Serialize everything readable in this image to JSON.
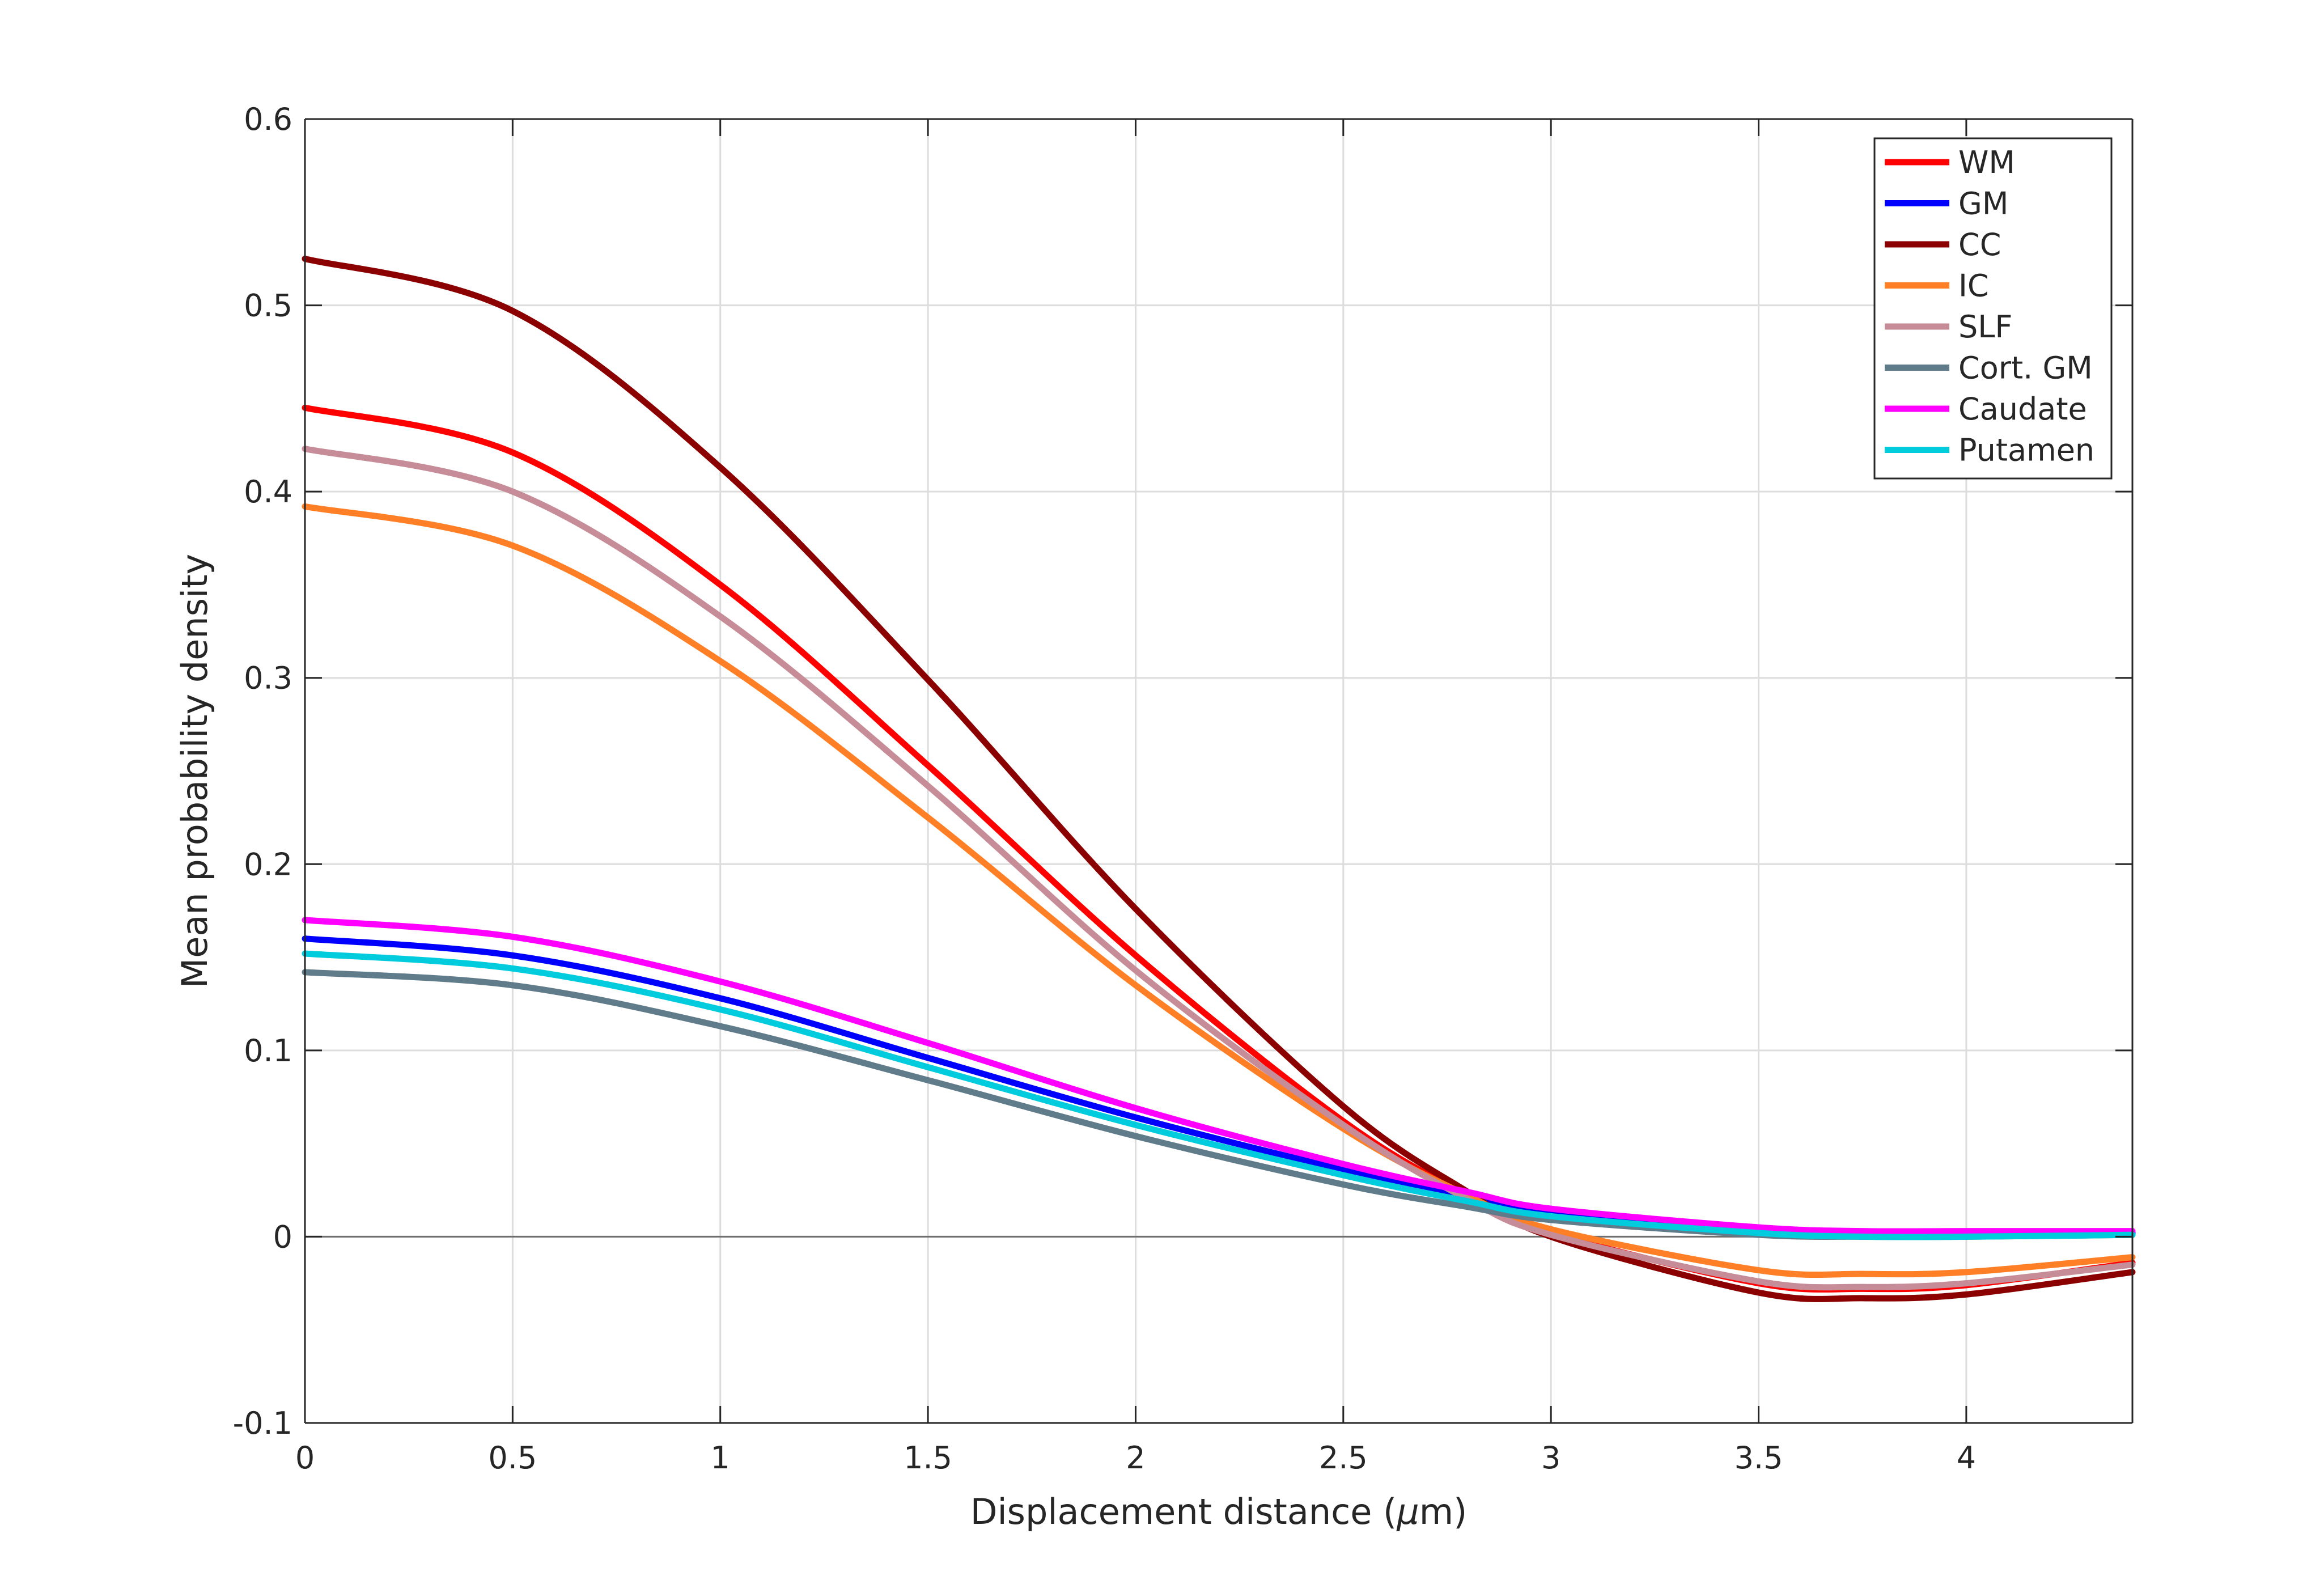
{
  "chart_data": {
    "type": "line",
    "title": "",
    "xlabel": "Displacement distance (",
    "xlabel_symbol": "μ",
    "xlabel_suffix": "m)",
    "ylabel": "Mean probability density",
    "xlim": [
      0,
      4.4
    ],
    "ylim": [
      -0.1,
      0.6
    ],
    "grid": true,
    "legend_position": "top-right",
    "x_ticks": [
      0,
      0.5,
      1,
      1.5,
      2,
      2.5,
      3,
      3.5,
      4
    ],
    "x_tick_labels": [
      "0",
      "0.5",
      "1",
      "1.5",
      "2",
      "2.5",
      "3",
      "3.5",
      "4"
    ],
    "y_ticks": [
      -0.1,
      0,
      0.1,
      0.2,
      0.3,
      0.4,
      0.5,
      0.6
    ],
    "y_tick_labels": [
      "-0.1",
      "0",
      "0.1",
      "0.2",
      "0.3",
      "0.4",
      "0.5",
      "0.6"
    ],
    "x": [
      0,
      0.5,
      1,
      1.5,
      2,
      2.5,
      2.8,
      3,
      3.5,
      3.75,
      4,
      4.4
    ],
    "series": [
      {
        "name": "WM",
        "color": "#ff0000",
        "values": [
          0.445,
          0.421,
          0.35,
          0.253,
          0.151,
          0.062,
          0.022,
          0.002,
          -0.025,
          -0.028,
          -0.026,
          -0.014
        ]
      },
      {
        "name": "GM",
        "color": "#0000ff",
        "values": [
          0.16,
          0.151,
          0.128,
          0.096,
          0.064,
          0.036,
          0.022,
          0.013,
          0.004,
          0.002,
          0.002,
          0.002
        ]
      },
      {
        "name": "CC",
        "color": "#8b0000",
        "values": [
          0.525,
          0.497,
          0.413,
          0.299,
          0.176,
          0.07,
          0.024,
          0.0,
          -0.03,
          -0.033,
          -0.031,
          -0.019
        ]
      },
      {
        "name": "IC",
        "color": "#ff7f27",
        "values": [
          0.392,
          0.371,
          0.309,
          0.225,
          0.135,
          0.058,
          0.022,
          0.004,
          -0.018,
          -0.02,
          -0.019,
          -0.011
        ]
      },
      {
        "name": "SLF",
        "color": "#c68c97",
        "values": [
          0.423,
          0.4,
          0.333,
          0.242,
          0.143,
          0.06,
          0.02,
          0.001,
          -0.024,
          -0.027,
          -0.025,
          -0.015
        ]
      },
      {
        "name": "Cort. GM",
        "color": "#607b8a",
        "values": [
          0.142,
          0.135,
          0.113,
          0.084,
          0.054,
          0.028,
          0.016,
          0.009,
          0.001,
          0.0,
          0.0,
          0.001
        ]
      },
      {
        "name": "Caudate",
        "color": "#ff00ff",
        "values": [
          0.17,
          0.161,
          0.137,
          0.104,
          0.069,
          0.039,
          0.024,
          0.015,
          0.005,
          0.003,
          0.003,
          0.003
        ]
      },
      {
        "name": "Putamen",
        "color": "#00ccdd",
        "values": [
          0.152,
          0.144,
          0.122,
          0.091,
          0.06,
          0.033,
          0.019,
          0.011,
          0.002,
          0.0,
          0.0,
          0.001
        ]
      }
    ]
  }
}
